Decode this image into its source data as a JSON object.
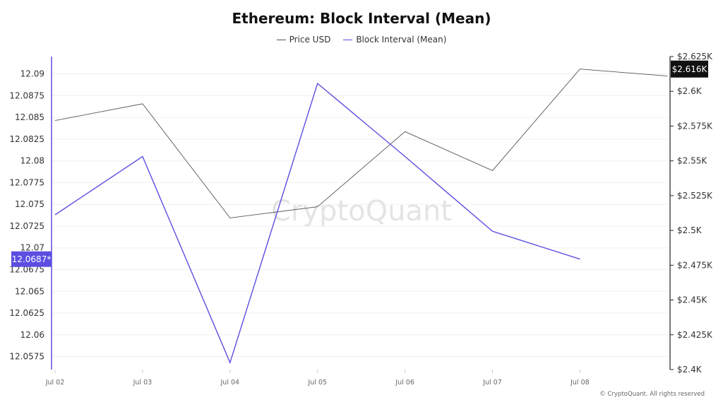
{
  "chart_data": {
    "type": "line",
    "title": "Ethereum: Block Interval (Mean)",
    "categories": [
      "Jul 02",
      "Jul 03",
      "Jul 04",
      "Jul 05",
      "Jul 06",
      "Jul 07",
      "Jul 08"
    ],
    "series": [
      {
        "name": "Price USD",
        "axis": "right",
        "color": "#555555",
        "x": [
          "Jul 02",
          "Jul 03",
          "Jul 04",
          "Jul 05",
          "Jul 06",
          "Jul 07",
          "Jul 08",
          "Jul 09"
        ],
        "values": [
          2579,
          2591,
          2509,
          2517,
          2571,
          2543,
          2616,
          2611
        ]
      },
      {
        "name": "Block Interval (Mean)",
        "axis": "left",
        "color": "#5b4ee0",
        "x": [
          "Jul 02",
          "Jul 03",
          "Jul 04",
          "Jul 05",
          "Jul 06",
          "Jul 07",
          "Jul 08"
        ],
        "values": [
          12.0738,
          12.0805,
          12.0568,
          12.0889,
          12.0805,
          12.0719,
          12.0687
        ]
      }
    ],
    "left_axis": {
      "ylim": [
        12.056,
        12.092
      ],
      "ticks": [
        12.0575,
        12.06,
        12.0625,
        12.065,
        12.0675,
        12.07,
        12.0725,
        12.075,
        12.0775,
        12.08,
        12.0825,
        12.085,
        12.0875,
        12.09
      ],
      "tick_labels": [
        "12.0575",
        "12.06",
        "12.0625",
        "12.065",
        "12.0675",
        "12.07",
        "12.0725",
        "12.075",
        "12.0775",
        "12.08",
        "12.0825",
        "12.085",
        "12.0875",
        "12.09"
      ],
      "highlight_label": "12.0687*",
      "highlight_value": 12.0687,
      "color": "#5b4ee0"
    },
    "right_axis": {
      "ylim": [
        2400,
        2625
      ],
      "ticks": [
        2400,
        2425,
        2450,
        2475,
        2500,
        2525,
        2550,
        2575,
        2600,
        2625
      ],
      "tick_labels": [
        "$2.4K",
        "$2.425K",
        "$2.45K",
        "$2.475K",
        "$2.5K",
        "$2.525K",
        "$2.55K",
        "$2.575K",
        "$2.6K",
        "$2.625K"
      ],
      "highlight_label": "$2.616K",
      "highlight_value": 2616
    },
    "grid": true,
    "legend_position": "top-center",
    "watermark": "CryptoQuant"
  },
  "footer": {
    "copyright": "© CryptoQuant. All rights reserved"
  }
}
